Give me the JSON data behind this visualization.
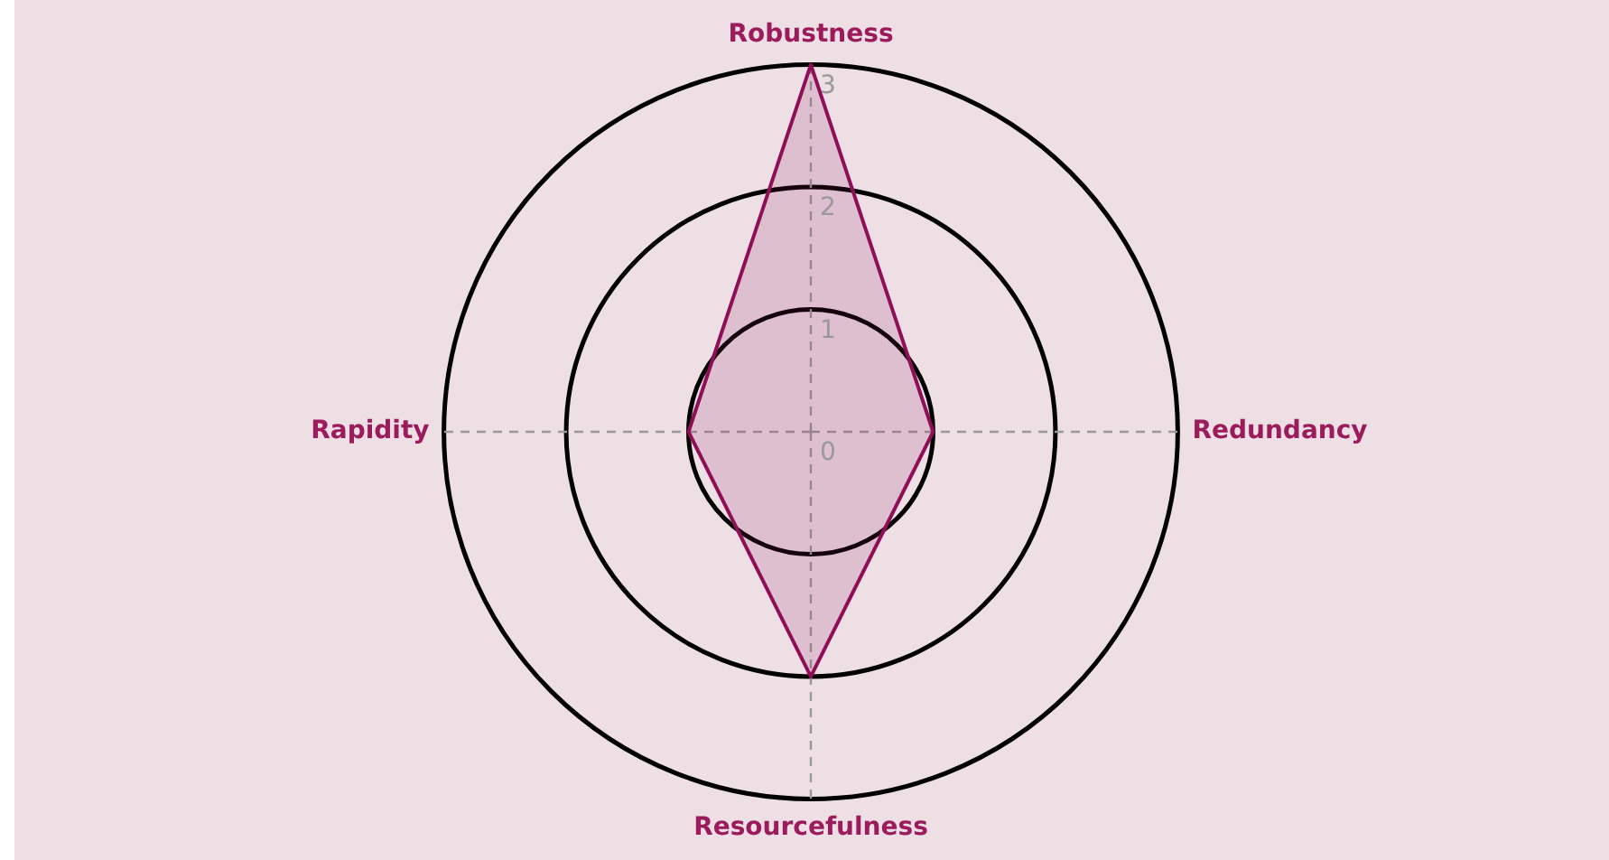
{
  "chart_data": {
    "type": "radar",
    "categories": [
      "Robustness",
      "Redundancy",
      "Resourcefulness",
      "Rapidity"
    ],
    "series": [
      {
        "color": "#8e0f55",
        "values": [
          3,
          1,
          2,
          1
        ]
      }
    ],
    "ylim": [
      0,
      3
    ],
    "yticks": [
      0,
      1,
      2,
      3
    ],
    "grid": true,
    "legend": false,
    "marker": "none"
  }
}
